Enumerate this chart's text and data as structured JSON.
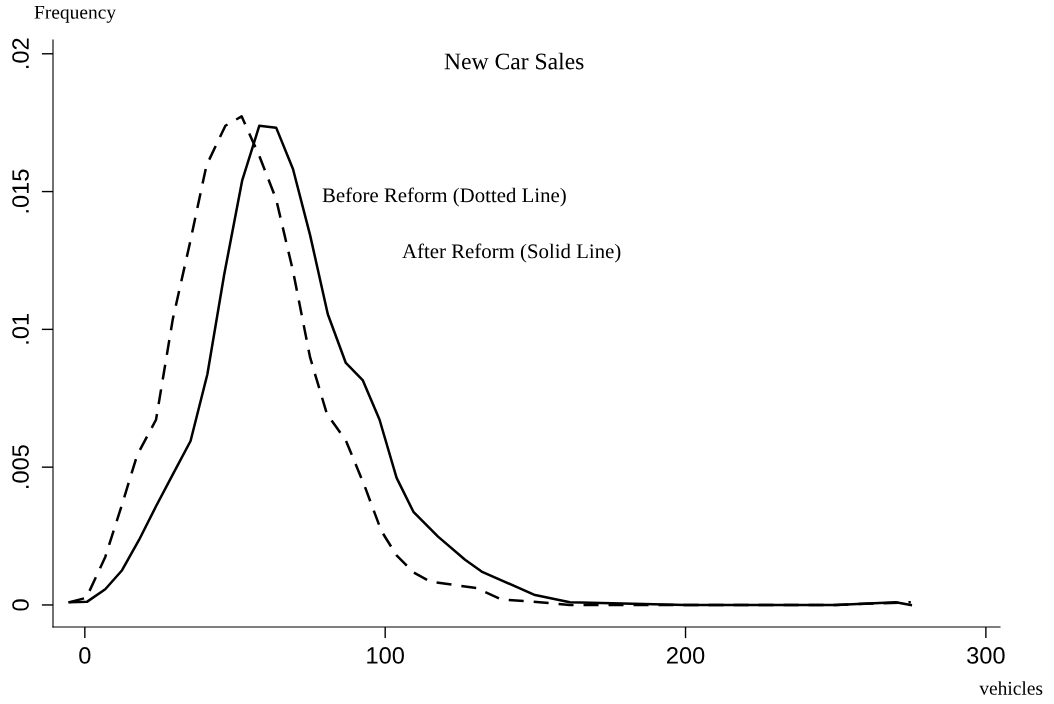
{
  "chart_data": {
    "type": "line",
    "title": "New Car Sales",
    "xlabel": "vehicles",
    "ylabel": "Frequency",
    "annotations": [
      "Before Reform (Dotted Line)",
      "After Reform (Solid Line)"
    ],
    "series": [
      {
        "color": "#000000",
        "line_style": "dashed",
        "x": [
          -5.1,
          0.5,
          6.8,
          12.4,
          17.4,
          23.7,
          29.3,
          34.9,
          40.5,
          46.8,
          52.2,
          58.1,
          63.7,
          69.3,
          75.0,
          80.6,
          86.9,
          93.1,
          98.7,
          103.8,
          109.4,
          115.0,
          130.4,
          138.7,
          149.2,
          161.5,
          200,
          250,
          275
        ],
        "values": [
          0.0001,
          0.00026,
          0.00174,
          0.00365,
          0.00543,
          0.00672,
          0.01038,
          0.01309,
          0.01595,
          0.01739,
          0.01773,
          0.01629,
          0.01472,
          0.01212,
          0.00898,
          0.00693,
          0.00597,
          0.00433,
          0.00269,
          0.0018,
          0.00118,
          0.00085,
          0.00061,
          0.0002,
          0.00012,
          0.0,
          0.0,
          0.0,
          0.0001
        ]
      },
      {
        "color": "#000000",
        "line_style": "solid",
        "x": [
          -5.1,
          0.8,
          6.8,
          12.4,
          18.0,
          23.7,
          29.3,
          35.2,
          40.8,
          46.4,
          52.4,
          58.1,
          63.7,
          69.3,
          75.0,
          80.9,
          86.9,
          92.5,
          98.1,
          103.8,
          109.4,
          117.6,
          126.6,
          132.1,
          149.9,
          161.5,
          200,
          250,
          270,
          275
        ],
        "values": [
          0.0001,
          0.00012,
          0.00057,
          0.00126,
          0.00235,
          0.00358,
          0.00474,
          0.00595,
          0.00837,
          0.01199,
          0.01541,
          0.01739,
          0.01732,
          0.01582,
          0.01342,
          0.01055,
          0.00878,
          0.00816,
          0.00673,
          0.00461,
          0.00338,
          0.00248,
          0.00164,
          0.00121,
          0.00036,
          0.0001,
          0.0,
          0.0,
          0.0001,
          0.0
        ]
      }
    ],
    "xlim": [
      -10.6,
      304.7
    ],
    "xticks": [
      0,
      100,
      200,
      300
    ],
    "ylim": [
      -0.0008,
      0.0205
    ],
    "yticks": [
      {
        "value": 0,
        "label": "0"
      },
      {
        "value": 0.005,
        "label": ".005"
      },
      {
        "value": 0.01,
        "label": ".01"
      },
      {
        "value": 0.015,
        "label": ".015"
      },
      {
        "value": 0.02,
        "label": ".02"
      }
    ],
    "grid": false,
    "legend": false
  }
}
